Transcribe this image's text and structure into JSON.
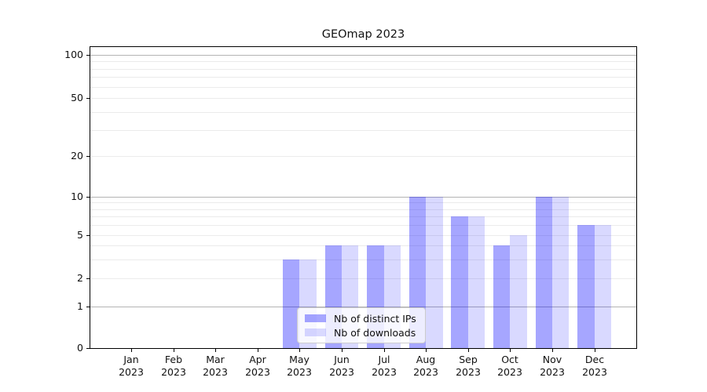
{
  "title": "GEOmap 2023",
  "chart_data": {
    "type": "bar",
    "title": "GEOmap 2023",
    "categories": [
      {
        "month": "Jan",
        "year": "2023"
      },
      {
        "month": "Feb",
        "year": "2023"
      },
      {
        "month": "Mar",
        "year": "2023"
      },
      {
        "month": "Apr",
        "year": "2023"
      },
      {
        "month": "May",
        "year": "2023"
      },
      {
        "month": "Jun",
        "year": "2023"
      },
      {
        "month": "Jul",
        "year": "2023"
      },
      {
        "month": "Aug",
        "year": "2023"
      },
      {
        "month": "Sep",
        "year": "2023"
      },
      {
        "month": "Oct",
        "year": "2023"
      },
      {
        "month": "Nov",
        "year": "2023"
      },
      {
        "month": "Dec",
        "year": "2023"
      }
    ],
    "series": [
      {
        "name": "Nb of distinct IPs",
        "color": "rgba(0,0,255,0.35)",
        "values": [
          0,
          0,
          0,
          0,
          3,
          4,
          4,
          10,
          7,
          4,
          10,
          6
        ]
      },
      {
        "name": "Nb of downloads",
        "color": "rgba(0,0,255,0.15)",
        "values": [
          0,
          0,
          0,
          0,
          3,
          4,
          4,
          10,
          7,
          5,
          10,
          6
        ]
      }
    ],
    "yaxis": {
      "scale": "symlog",
      "ticks": [
        0,
        1,
        2,
        5,
        10,
        20,
        50,
        100
      ],
      "major_gridlines": [
        1,
        10,
        100
      ],
      "minor_gridlines": [
        3,
        4,
        6,
        7,
        8,
        9,
        30,
        40,
        60,
        70,
        80,
        90
      ],
      "ylim": [
        0,
        115
      ]
    },
    "xlabel": "",
    "ylabel": "",
    "grid": true,
    "legend_position": "lower center",
    "colors": {
      "major_grid": "#b3b3b3",
      "minor_grid": "#ebebeb",
      "spine": "#000000"
    }
  }
}
